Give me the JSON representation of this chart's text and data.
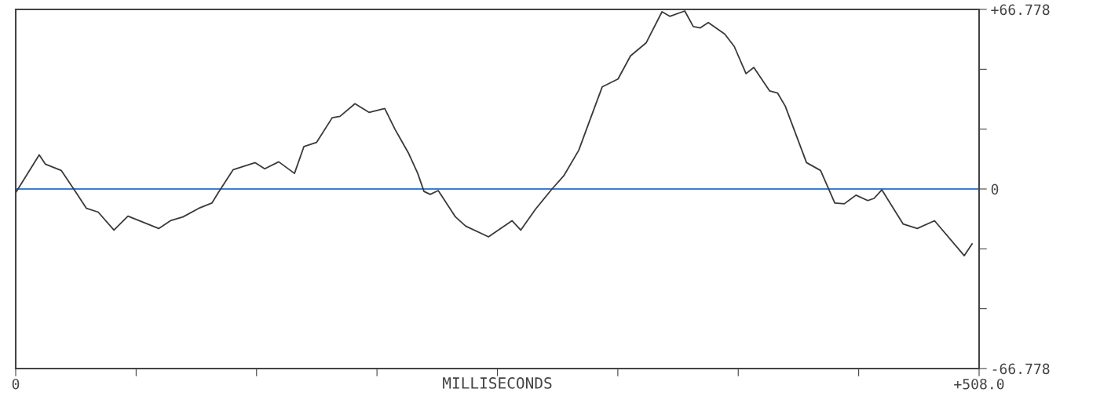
{
  "chart_data": {
    "type": "line",
    "xlabel": "MILLISECONDS",
    "x": [
      0,
      12.4,
      15.7,
      24,
      31.9,
      37.3,
      43.5,
      51.8,
      59.2,
      75.4,
      81.6,
      88.2,
      96.5,
      103.5,
      106.8,
      114.7,
      126.3,
      131.3,
      138.7,
      147,
      152,
      158.6,
      166.9,
      171,
      178.9,
      186.3,
      194.6,
      200,
      207,
      212,
      215.3,
      218.6,
      222.8,
      231.9,
      237.3,
      249.3,
      261.7,
      266.3,
      274.1,
      282.8,
      289,
      296.9,
      303.5,
      309.3,
      317.6,
      324.2,
      332.5,
      340.8,
      344.9,
      352.8,
      357.3,
      361,
      365.2,
      373.9,
      378.9,
      385.1,
      389.2,
      397.5,
      401.7,
      405.8,
      417,
      424.4,
      431.9,
      436.9,
      443.1,
      449.3,
      452.6,
      456.7,
      467.9,
      475.4,
      484.5,
      500.2,
      504.3
    ],
    "series": [
      {
        "color": "#3a3a3a",
        "values": [
          -1.4,
          12.7,
          9.2,
          6.9,
          -1.4,
          -7.2,
          -8.6,
          -15.3,
          -10.1,
          -14.7,
          -11.8,
          -10.4,
          -7.2,
          -5.2,
          -1.4,
          7.2,
          9.8,
          7.5,
          10.1,
          5.8,
          15.8,
          17.3,
          26.5,
          27,
          31.7,
          28.5,
          29.9,
          22.2,
          13.5,
          5.8,
          -0.9,
          -2,
          -0.6,
          -10.4,
          -13.8,
          -17.8,
          -11.8,
          -15.3,
          -7.5,
          0,
          4.9,
          14.4,
          27,
          38,
          40.9,
          49.5,
          54.4,
          65.9,
          64.2,
          66.2,
          60.4,
          59.9,
          61.9,
          57.6,
          53,
          42.9,
          45.2,
          36.5,
          35.7,
          30.8,
          9.8,
          6.9,
          -5.2,
          -5.5,
          -2.3,
          -4.3,
          -3.5,
          -0.3,
          -13,
          -14.7,
          -11.8,
          -24.8,
          -20.4
        ]
      }
    ],
    "xlim": [
      0,
      508
    ],
    "xticks": [
      {
        "value": 0,
        "label": "0"
      },
      {
        "value": 63.5,
        "label": null
      },
      {
        "value": 127,
        "label": null
      },
      {
        "value": 190.5,
        "label": null
      },
      {
        "value": 254,
        "label": null
      },
      {
        "value": 317.5,
        "label": null
      },
      {
        "value": 381,
        "label": null
      },
      {
        "value": 444.5,
        "label": null
      },
      {
        "value": 508,
        "label": "+508.0"
      }
    ],
    "ylim": [
      -66.778,
      66.778
    ],
    "yticks": [
      {
        "value": -66.778,
        "label": "-66.778"
      },
      {
        "value": -44.519,
        "label": null
      },
      {
        "value": -22.259,
        "label": null
      },
      0,
      {
        "value": 22.259,
        "label": null
      },
      {
        "value": 44.519,
        "label": null
      },
      {
        "value": 66.778,
        "label": "+66.778"
      }
    ],
    "ref_lines": [
      {
        "axis": "y",
        "value": 0,
        "label": null,
        "color": "#3a7fd0"
      }
    ],
    "grid": false,
    "marker": "none",
    "line_style": "solid"
  }
}
